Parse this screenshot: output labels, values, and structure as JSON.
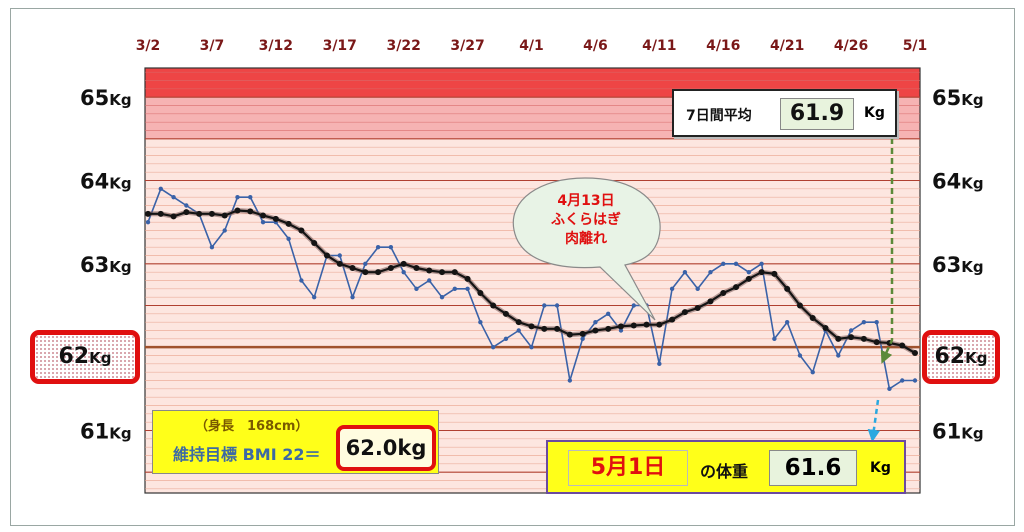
{
  "chart_data": {
    "type": "line",
    "x_tick_labels": [
      "3/2",
      "3/7",
      "3/12",
      "3/17",
      "3/22",
      "3/27",
      "4/1",
      "4/6",
      "4/11",
      "4/16",
      "4/21",
      "4/26",
      "5/1"
    ],
    "y_tick_values": [
      65,
      64,
      63,
      62,
      61
    ],
    "y_unit": "Kg",
    "ylim": [
      60.25,
      65.35
    ],
    "x": [
      "3/2",
      "3/3",
      "3/4",
      "3/5",
      "3/6",
      "3/7",
      "3/8",
      "3/9",
      "3/10",
      "3/11",
      "3/12",
      "3/13",
      "3/14",
      "3/15",
      "3/16",
      "3/17",
      "3/18",
      "3/19",
      "3/20",
      "3/21",
      "3/22",
      "3/23",
      "3/24",
      "3/25",
      "3/26",
      "3/27",
      "3/28",
      "3/29",
      "3/30",
      "3/31",
      "4/1",
      "4/2",
      "4/3",
      "4/4",
      "4/5",
      "4/6",
      "4/7",
      "4/8",
      "4/9",
      "4/10",
      "4/11",
      "4/12",
      "4/13",
      "4/14",
      "4/15",
      "4/16",
      "4/17",
      "4/18",
      "4/19",
      "4/20",
      "4/21",
      "4/22",
      "4/23",
      "4/24",
      "4/25",
      "4/26",
      "4/27",
      "4/28",
      "4/29",
      "4/30",
      "5/1"
    ],
    "series": [
      {
        "color": "#3a62a8",
        "values": [
          63.5,
          63.9,
          63.8,
          63.7,
          63.6,
          63.2,
          63.4,
          63.8,
          63.8,
          63.5,
          63.5,
          63.3,
          62.8,
          62.6,
          63.1,
          63.1,
          62.6,
          63.0,
          63.2,
          63.2,
          62.9,
          62.7,
          62.8,
          62.6,
          62.7,
          62.7,
          62.3,
          62.0,
          62.1,
          62.2,
          62.0,
          62.5,
          62.5,
          61.6,
          62.1,
          62.3,
          62.4,
          62.2,
          62.5,
          62.5,
          61.8,
          62.7,
          62.9,
          62.7,
          62.9,
          63.0,
          63.0,
          62.9,
          63.0,
          62.1,
          62.3,
          61.9,
          61.7,
          62.2,
          61.9,
          62.2,
          62.3,
          62.3,
          61.5,
          61.6,
          61.6
        ]
      },
      {
        "color": "#141414",
        "values": [
          63.6,
          63.6,
          63.57,
          63.62,
          63.6,
          63.6,
          63.58,
          63.64,
          63.63,
          63.58,
          63.54,
          63.48,
          63.4,
          63.25,
          63.1,
          63.0,
          62.95,
          62.9,
          62.9,
          62.95,
          63.0,
          62.95,
          62.92,
          62.9,
          62.9,
          62.82,
          62.65,
          62.5,
          62.4,
          62.3,
          62.25,
          62.22,
          62.22,
          62.15,
          62.16,
          62.2,
          62.22,
          62.25,
          62.26,
          62.27,
          62.27,
          62.33,
          62.42,
          62.47,
          62.55,
          62.65,
          62.72,
          62.82,
          62.9,
          62.88,
          62.7,
          62.5,
          62.35,
          62.23,
          62.1,
          62.12,
          62.1,
          62.06,
          62.05,
          62.02,
          61.93
        ]
      }
    ],
    "goal_weight": 62,
    "goal_line_color": "#a0522d",
    "band_colors": {
      "top": "#ee4545",
      "upper": "#f6b3b3",
      "lower": "#fde6e0"
    },
    "grid": true
  },
  "labels": {
    "goal_left": "62",
    "goal_right": "62",
    "kg": "Kg",
    "avg_label": "7日間平均",
    "avg_value": "61.9",
    "avg_unit": "Kg",
    "height_note": "（身長　168cm）",
    "target_label": "維持目標 BMI 22＝",
    "target_value": "62.0kg",
    "today_date": "5月1日",
    "today_text": "の体重",
    "today_value": "61.6",
    "today_unit": "Kg",
    "callout_line1": "4月13日",
    "callout_line2": "ふくらはぎ",
    "callout_line3": "肉離れ"
  }
}
